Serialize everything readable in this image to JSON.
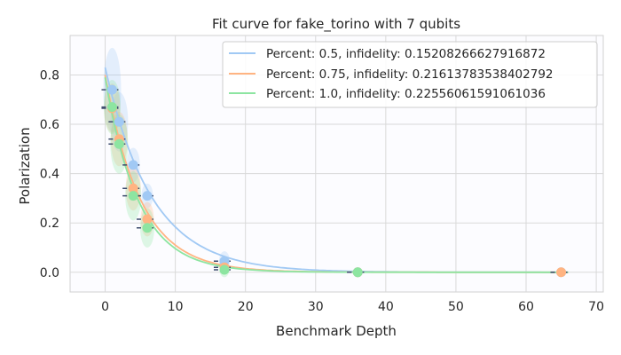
{
  "chart_data": {
    "type": "line",
    "title": "Fit curve for fake_torino with 7 qubits",
    "xlabel": "Benchmark Depth",
    "ylabel": "Polarization",
    "xlim": [
      -5,
      71
    ],
    "ylim": [
      -0.08,
      0.96
    ],
    "x_ticks": [
      0,
      10,
      20,
      30,
      40,
      50,
      60,
      70
    ],
    "y_ticks": [
      0.0,
      0.2,
      0.4,
      0.6,
      0.8
    ],
    "y_tick_labels": [
      "0.0",
      "0.2",
      "0.4",
      "0.6",
      "0.8"
    ],
    "grid": true,
    "legend_position": "top-right",
    "series": [
      {
        "name": "Percent: 0.5, infidelity: 0.15208266627916872",
        "color": "#a1c9f4",
        "x": [
          1,
          2,
          4,
          6,
          17,
          36,
          65
        ],
        "y": [
          0.74,
          0.61,
          0.435,
          0.31,
          0.045,
          0.0,
          0.0
        ],
        "fit_amplitude": 0.83,
        "fit_decay": 0.86,
        "violin_spread": [
          0.17,
          0.12,
          0.07,
          0.05,
          0.04,
          0.02,
          0.015
        ]
      },
      {
        "name": "Percent: 0.75, infidelity: 0.21613783538402792",
        "color": "#ffb482",
        "x": [
          1,
          2,
          4,
          6,
          17,
          36,
          65
        ],
        "y": [
          0.665,
          0.54,
          0.34,
          0.215,
          0.02,
          0.0,
          0.0
        ],
        "fit_amplitude": 0.8,
        "fit_decay": 0.82,
        "violin_spread": [
          0.1,
          0.11,
          0.09,
          0.07,
          0.03,
          0.02,
          0.01
        ]
      },
      {
        "name": "Percent: 1.0, infidelity: 0.22556061591061036",
        "color": "#8de5a1",
        "x": [
          1,
          2,
          4,
          6,
          17,
          36
        ],
        "y": [
          0.67,
          0.52,
          0.31,
          0.18,
          0.01,
          0.0
        ],
        "fit_amplitude": 0.79,
        "fit_decay": 0.81,
        "violin_spread": [
          0.11,
          0.12,
          0.1,
          0.08,
          0.03,
          0.02
        ]
      }
    ]
  }
}
